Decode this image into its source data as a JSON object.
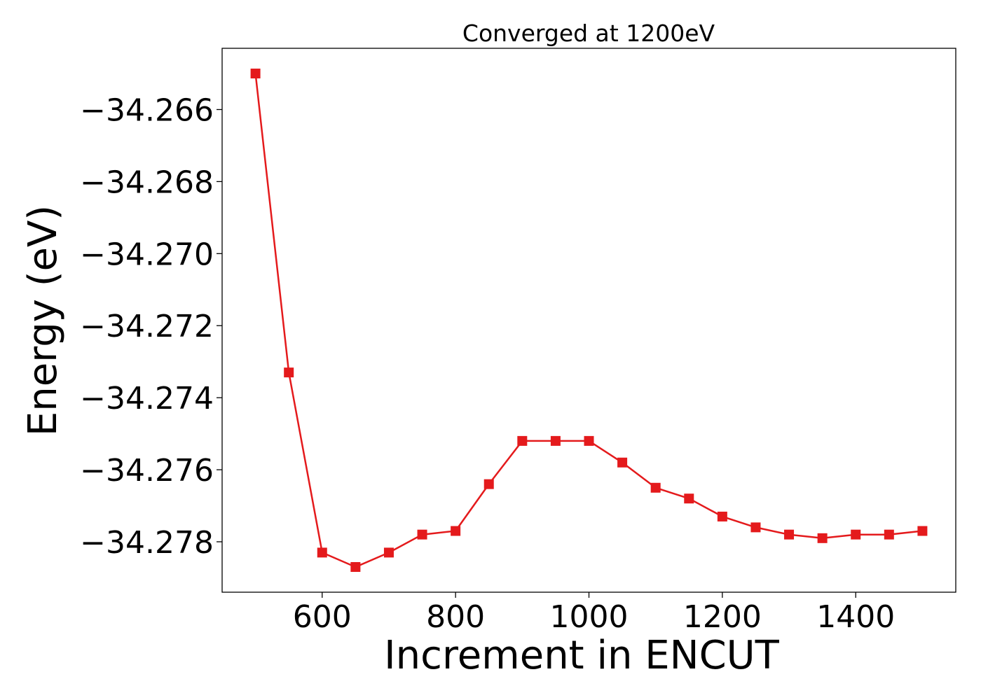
{
  "chart_data": {
    "type": "line",
    "title": "Converged at 1200eV",
    "xlabel": "Increment in ENCUT",
    "ylabel": "Energy (eV)",
    "xlim": [
      450,
      1550
    ],
    "ylim": [
      -34.2794,
      -34.2643
    ],
    "xticks": [
      600,
      800,
      1000,
      1200,
      1400
    ],
    "yticks": [
      -34.266,
      -34.268,
      -34.27,
      -34.272,
      -34.274,
      -34.276,
      -34.278
    ],
    "grid": false,
    "series": [
      {
        "color": "#e41a1c",
        "marker": "square",
        "x": [
          500,
          550,
          600,
          650,
          700,
          750,
          800,
          850,
          900,
          950,
          1000,
          1050,
          1100,
          1150,
          1200,
          1250,
          1300,
          1350,
          1400,
          1450,
          1500
        ],
        "y": [
          -34.265,
          -34.2733,
          -34.2783,
          -34.2787,
          -34.2783,
          -34.2778,
          -34.2777,
          -34.2764,
          -34.2752,
          -34.2752,
          -34.2752,
          -34.2758,
          -34.2765,
          -34.2768,
          -34.2773,
          -34.2776,
          -34.2778,
          -34.2779,
          -34.2778,
          -34.2778,
          -34.2777
        ]
      }
    ]
  }
}
